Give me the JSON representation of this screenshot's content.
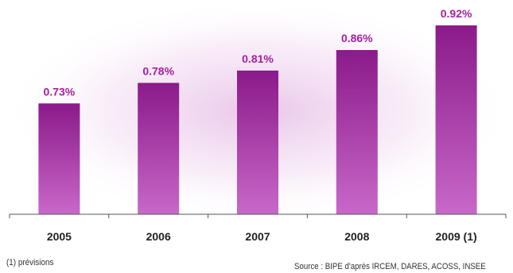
{
  "chart_data": {
    "type": "bar",
    "categories": [
      "2005",
      "2006",
      "2007",
      "2008",
      "2009 (1)"
    ],
    "values": [
      0.73,
      0.78,
      0.81,
      0.86,
      0.92
    ],
    "value_labels": [
      "0.73%",
      "0.78%",
      "0.81%",
      "0.86%",
      "0.92%"
    ],
    "ylim": [
      0.46,
      0.92
    ],
    "grid": false,
    "bar_colors": [
      "#8b1a8a",
      "#c868c9"
    ],
    "label_color": "#a3219f"
  },
  "footnote": "(1) prévisions",
  "source": "Source : BIPE d'après IRCEM, DARES, ACOSS, INSEE"
}
